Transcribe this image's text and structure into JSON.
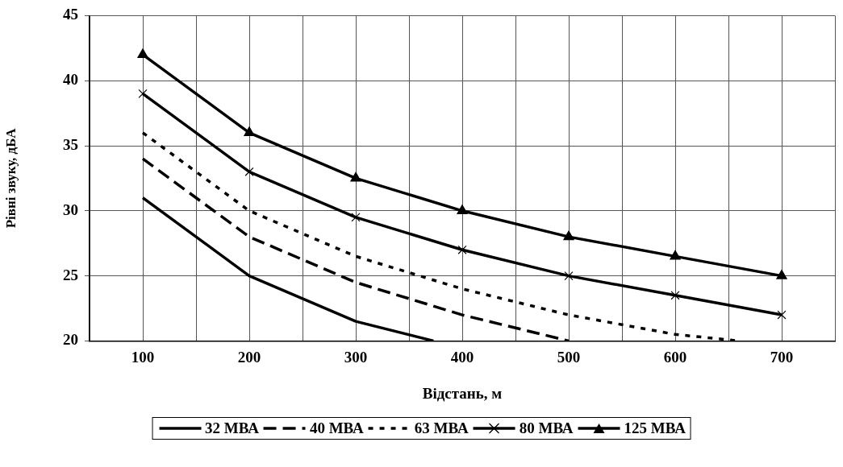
{
  "chart_data": {
    "type": "line",
    "xlabel": "Відстань, м",
    "ylabel": "Рівні звуку, дБА",
    "xlim": [
      50,
      750
    ],
    "xticks": [
      {
        "value": 50,
        "label": null
      },
      100,
      {
        "value": 150,
        "label": null
      },
      200,
      {
        "value": 250,
        "label": null
      },
      300,
      {
        "value": 350,
        "label": null
      },
      400,
      {
        "value": 450,
        "label": null
      },
      500,
      {
        "value": 550,
        "label": null
      },
      600,
      {
        "value": 650,
        "label": null
      },
      700,
      {
        "value": 750,
        "label": null
      }
    ],
    "ylim": [
      20,
      45
    ],
    "yticks": [
      20,
      25,
      30,
      35,
      40,
      45
    ],
    "grid": true,
    "legend": "bottom",
    "series": [
      {
        "name": "32 МВА",
        "color": "#000000",
        "line_style": "solid",
        "marker": "none",
        "x": [
          100,
          200,
          300,
          373
        ],
        "values": [
          31,
          25,
          21.5,
          20
        ]
      },
      {
        "name": "40 МВА",
        "color": "#000000",
        "line_style": "dashed",
        "marker": "none",
        "x": [
          100,
          200,
          300,
          400,
          500
        ],
        "values": [
          34,
          28,
          24.5,
          22,
          20
        ]
      },
      {
        "name": "63 МВА",
        "color": "#000000",
        "line_style": "dotted",
        "marker": "none",
        "x": [
          100,
          200,
          300,
          400,
          500,
          600,
          660
        ],
        "values": [
          36,
          30,
          26.5,
          24,
          22,
          20.5,
          20
        ]
      },
      {
        "name": "80 МВА",
        "color": "#000000",
        "line_style": "solid",
        "marker": "cross",
        "x": [
          100,
          200,
          300,
          400,
          500,
          600,
          700
        ],
        "values": [
          39,
          33,
          29.5,
          27,
          25,
          23.5,
          22
        ]
      },
      {
        "name": "125 МВА",
        "color": "#000000",
        "line_style": "solid",
        "marker": "triangle",
        "x": [
          100,
          200,
          300,
          400,
          500,
          600,
          700
        ],
        "values": [
          42,
          36,
          32.5,
          30,
          28,
          26.5,
          25
        ]
      }
    ]
  }
}
